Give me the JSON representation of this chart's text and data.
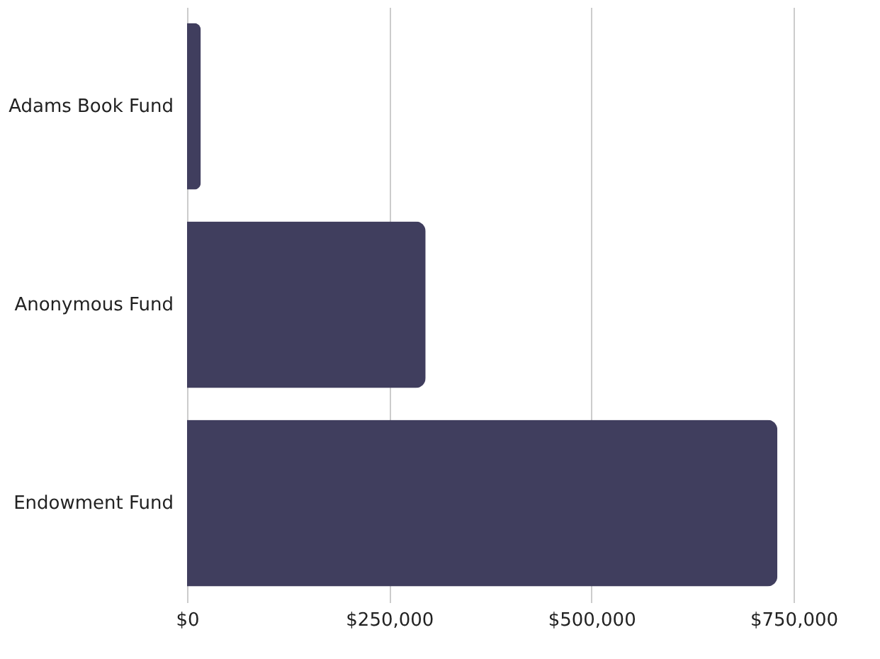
{
  "chart_data": {
    "type": "bar",
    "orientation": "horizontal",
    "categories": [
      "Adams Book Fund",
      "Anonymous Fund",
      "Endowment Fund"
    ],
    "values": [
      17000,
      295000,
      730000
    ],
    "color": "#403e5e",
    "xlim": [
      0,
      750000
    ],
    "xticks": [
      {
        "value": 0,
        "label": "$0"
      },
      {
        "value": 250000,
        "label": "$250,000"
      },
      {
        "value": 500000,
        "label": "$500,000"
      },
      {
        "value": 750000,
        "label": "$750,000"
      }
    ],
    "grid": "x"
  }
}
